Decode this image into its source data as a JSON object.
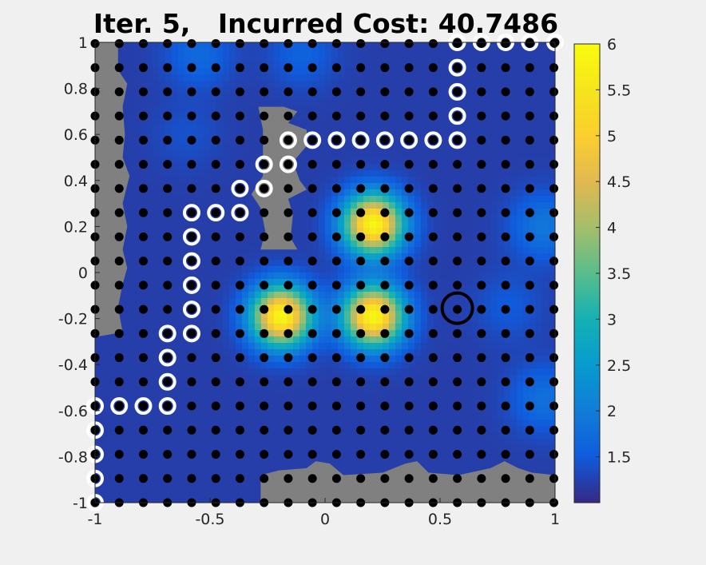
{
  "chart_data": {
    "type": "heatmap",
    "title": "Iter. 5,   Incurred Cost: 40.7486",
    "xlim": [
      -1,
      1
    ],
    "ylim": [
      -1,
      1
    ],
    "x_ticks": [
      {
        "value": -1,
        "label": "-1"
      },
      {
        "value": -0.5,
        "label": "-0.5"
      },
      {
        "value": 0,
        "label": "0"
      },
      {
        "value": 0.5,
        "label": "0.5"
      },
      {
        "value": 1,
        "label": "1"
      }
    ],
    "y_ticks": [
      {
        "value": 1,
        "label": "1"
      },
      {
        "value": 0.8,
        "label": "0.8"
      },
      {
        "value": 0.6,
        "label": "0.6"
      },
      {
        "value": 0.4,
        "label": "0.4"
      },
      {
        "value": 0.2,
        "label": "0.2"
      },
      {
        "value": 0,
        "label": "0"
      },
      {
        "value": -0.2,
        "label": "-0.2"
      },
      {
        "value": -0.4,
        "label": "-0.4"
      },
      {
        "value": -0.6,
        "label": "-0.6"
      },
      {
        "value": -0.8,
        "label": "-0.8"
      },
      {
        "value": -1,
        "label": "-1"
      }
    ],
    "colorbar": {
      "colormap": "parula",
      "range": [
        1,
        6
      ],
      "ticks": [
        {
          "value": 6,
          "label": "6"
        },
        {
          "value": 5.5,
          "label": "5.5"
        },
        {
          "value": 5,
          "label": "5"
        },
        {
          "value": 4.5,
          "label": "4.5"
        },
        {
          "value": 4,
          "label": "4"
        },
        {
          "value": 3.5,
          "label": "3.5"
        },
        {
          "value": 3,
          "label": "3"
        },
        {
          "value": 2.5,
          "label": "2.5"
        },
        {
          "value": 2,
          "label": "2"
        },
        {
          "value": 1.5,
          "label": "1.5"
        }
      ]
    },
    "background_level": 1.2,
    "cost_peaks": [
      {
        "x": 0.21,
        "y": 0.21,
        "value": 5.9,
        "sigma": 0.09
      },
      {
        "x": -0.19,
        "y": -0.19,
        "value": 5.9,
        "sigma": 0.09
      },
      {
        "x": 0.21,
        "y": -0.19,
        "value": 5.9,
        "sigma": 0.09
      },
      {
        "x": -0.55,
        "y": 0.95,
        "value": 1.7,
        "sigma": 0.1
      },
      {
        "x": -0.1,
        "y": 0.95,
        "value": 1.6,
        "sigma": 0.1
      },
      {
        "x": 0.95,
        "y": 0.2,
        "value": 1.9,
        "sigma": 0.1
      },
      {
        "x": 0.95,
        "y": -0.55,
        "value": 1.8,
        "sigma": 0.1
      },
      {
        "x": 0.8,
        "y": -0.15,
        "value": 1.5,
        "sigma": 0.1
      },
      {
        "x": -0.6,
        "y": 0.6,
        "value": 1.4,
        "sigma": 0.1
      }
    ],
    "obstacle_color": "#808080",
    "obstacles": [
      [
        [
          -1,
          1
        ],
        [
          -0.9,
          1
        ],
        [
          -0.9,
          0.88
        ],
        [
          -0.86,
          0.82
        ],
        [
          -0.88,
          0.72
        ],
        [
          -0.87,
          0.6
        ],
        [
          -0.88,
          0.5
        ],
        [
          -0.85,
          0.42
        ],
        [
          -0.88,
          0.3
        ],
        [
          -0.86,
          0.2
        ],
        [
          -0.88,
          0.1
        ],
        [
          -0.86,
          0.02
        ],
        [
          -0.88,
          -0.05
        ],
        [
          -0.9,
          -0.15
        ],
        [
          -0.88,
          -0.26
        ],
        [
          -1,
          -0.28
        ]
      ],
      [
        [
          -0.29,
          0.72
        ],
        [
          -0.18,
          0.72
        ],
        [
          -0.12,
          0.7
        ],
        [
          -0.16,
          0.65
        ],
        [
          -0.08,
          0.62
        ],
        [
          -0.08,
          0.55
        ],
        [
          -0.14,
          0.48
        ],
        [
          -0.11,
          0.4
        ],
        [
          -0.08,
          0.36
        ],
        [
          -0.16,
          0.32
        ],
        [
          -0.14,
          0.25
        ],
        [
          -0.15,
          0.15
        ],
        [
          -0.12,
          0.1
        ],
        [
          -0.28,
          0.1
        ],
        [
          -0.26,
          0.18
        ],
        [
          -0.28,
          0.28
        ],
        [
          -0.32,
          0.34
        ],
        [
          -0.27,
          0.42
        ],
        [
          -0.27,
          0.5
        ],
        [
          -0.27,
          0.62
        ]
      ],
      [
        [
          -0.28,
          -1
        ],
        [
          -0.28,
          -0.88
        ],
        [
          -0.2,
          -0.86
        ],
        [
          -0.08,
          -0.85
        ],
        [
          -0.04,
          -0.82
        ],
        [
          0.02,
          -0.83
        ],
        [
          0.08,
          -0.88
        ],
        [
          0.25,
          -0.87
        ],
        [
          0.35,
          -0.83
        ],
        [
          0.4,
          -0.82
        ],
        [
          0.45,
          -0.87
        ],
        [
          0.58,
          -0.88
        ],
        [
          0.72,
          -0.85
        ],
        [
          0.78,
          -0.82
        ],
        [
          0.84,
          -0.85
        ],
        [
          0.9,
          -0.87
        ],
        [
          1,
          -0.88
        ],
        [
          1,
          -1
        ]
      ]
    ],
    "grid": {
      "x_start": -1,
      "x_end": 1,
      "x_step": 0.105,
      "y_start": -1,
      "y_end": 1,
      "y_step": 0.105
    },
    "path": [
      [
        -1,
        -1
      ],
      [
        -1,
        -0.895
      ],
      [
        -1,
        -0.79
      ],
      [
        -1,
        -0.685
      ],
      [
        -1,
        -0.58
      ],
      [
        -0.895,
        -0.58
      ],
      [
        -0.79,
        -0.58
      ],
      [
        -0.685,
        -0.58
      ],
      [
        -0.685,
        -0.475
      ],
      [
        -0.685,
        -0.37
      ],
      [
        -0.685,
        -0.265
      ],
      [
        -0.58,
        -0.265
      ],
      [
        -0.58,
        -0.16
      ],
      [
        -0.58,
        -0.055
      ],
      [
        -0.58,
        0.05
      ],
      [
        -0.58,
        0.155
      ],
      [
        -0.58,
        0.26
      ],
      [
        -0.475,
        0.26
      ],
      [
        -0.37,
        0.26
      ],
      [
        -0.37,
        0.365
      ],
      [
        -0.265,
        0.365
      ],
      [
        -0.265,
        0.47
      ],
      [
        -0.16,
        0.47
      ],
      [
        -0.16,
        0.575
      ],
      [
        -0.055,
        0.575
      ],
      [
        0.05,
        0.575
      ],
      [
        0.155,
        0.575
      ],
      [
        0.26,
        0.575
      ],
      [
        0.365,
        0.575
      ],
      [
        0.47,
        0.575
      ],
      [
        0.575,
        0.575
      ],
      [
        0.575,
        0.68
      ],
      [
        0.575,
        0.785
      ],
      [
        0.575,
        0.89
      ],
      [
        0.575,
        1
      ],
      [
        0.68,
        1
      ],
      [
        0.785,
        1
      ],
      [
        0.89,
        1
      ],
      [
        1,
        1
      ]
    ],
    "current_position": {
      "x": 0.575,
      "y": -0.155
    }
  }
}
